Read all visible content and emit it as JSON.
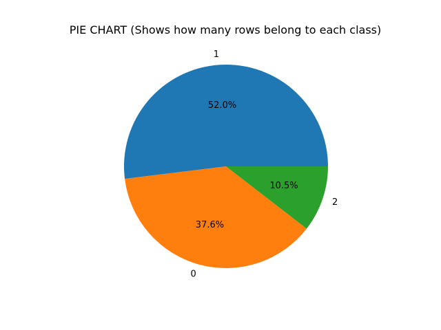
{
  "chart_data": {
    "type": "pie",
    "title": "PIE CHART (Shows how many rows belong to each class)",
    "slices": [
      {
        "label": "1",
        "value": 52.0,
        "percent_label": "52.0%",
        "color": "#1f77b4"
      },
      {
        "label": "0",
        "value": 37.6,
        "percent_label": "37.6%",
        "color": "#ff7f0e"
      },
      {
        "label": "2",
        "value": 10.5,
        "percent_label": "10.5%",
        "color": "#2ca02c"
      }
    ],
    "start_angle_deg": 0,
    "direction": "counterclockwise",
    "legend": "none"
  }
}
